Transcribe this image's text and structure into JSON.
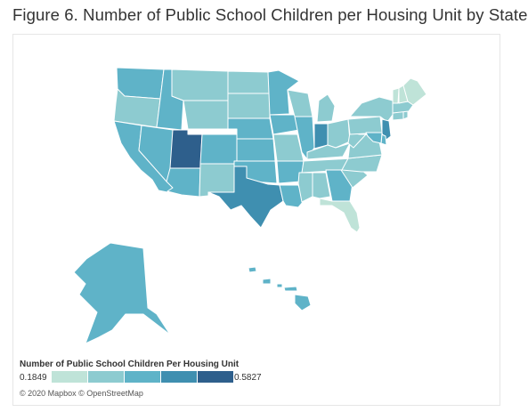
{
  "title": "Figure 6. Number of Public School Children per Housing Unit by State",
  "attribution": "© 2020 Mapbox © OpenStreetMap",
  "legend": {
    "title": "Number of Public School Children Per Housing Unit",
    "min_label": "0.1849",
    "max_label": "0.5827",
    "min": 0.1849,
    "max": 0.5827,
    "colors": [
      "#bfe3d8",
      "#8dcbd0",
      "#5fb3c8",
      "#3f8fb0",
      "#2e5f8c"
    ]
  },
  "states": [
    {
      "code": "WA",
      "bin": 2
    },
    {
      "code": "OR",
      "bin": 1
    },
    {
      "code": "CA",
      "bin": 2
    },
    {
      "code": "NV",
      "bin": 2
    },
    {
      "code": "ID",
      "bin": 2
    },
    {
      "code": "MT",
      "bin": 1
    },
    {
      "code": "WY",
      "bin": 1
    },
    {
      "code": "UT",
      "bin": 4
    },
    {
      "code": "AZ",
      "bin": 2
    },
    {
      "code": "CO",
      "bin": 2
    },
    {
      "code": "NM",
      "bin": 1
    },
    {
      "code": "ND",
      "bin": 1
    },
    {
      "code": "SD",
      "bin": 1
    },
    {
      "code": "NE",
      "bin": 2
    },
    {
      "code": "KS",
      "bin": 2
    },
    {
      "code": "OK",
      "bin": 2
    },
    {
      "code": "TX",
      "bin": 3
    },
    {
      "code": "MN",
      "bin": 2
    },
    {
      "code": "IA",
      "bin": 2
    },
    {
      "code": "MO",
      "bin": 1
    },
    {
      "code": "AR",
      "bin": 2
    },
    {
      "code": "LA",
      "bin": 2
    },
    {
      "code": "WI",
      "bin": 1
    },
    {
      "code": "IL",
      "bin": 2
    },
    {
      "code": "MI",
      "bin": 1
    },
    {
      "code": "IN",
      "bin": 3
    },
    {
      "code": "OH",
      "bin": 1
    },
    {
      "code": "KY",
      "bin": 1
    },
    {
      "code": "TN",
      "bin": 1
    },
    {
      "code": "MS",
      "bin": 1
    },
    {
      "code": "AL",
      "bin": 1
    },
    {
      "code": "GA",
      "bin": 2
    },
    {
      "code": "FL",
      "bin": 0
    },
    {
      "code": "SC",
      "bin": 1
    },
    {
      "code": "NC",
      "bin": 1
    },
    {
      "code": "VA",
      "bin": 1
    },
    {
      "code": "WV",
      "bin": 1
    },
    {
      "code": "PA",
      "bin": 1
    },
    {
      "code": "NY",
      "bin": 1
    },
    {
      "code": "NJ",
      "bin": 3
    },
    {
      "code": "DE",
      "bin": 2
    },
    {
      "code": "MD",
      "bin": 2
    },
    {
      "code": "CT",
      "bin": 1
    },
    {
      "code": "RI",
      "bin": 1
    },
    {
      "code": "MA",
      "bin": 1
    },
    {
      "code": "VT",
      "bin": 0
    },
    {
      "code": "NH",
      "bin": 0
    },
    {
      "code": "ME",
      "bin": 0
    },
    {
      "code": "AK",
      "bin": 2
    },
    {
      "code": "HI",
      "bin": 2
    }
  ]
}
